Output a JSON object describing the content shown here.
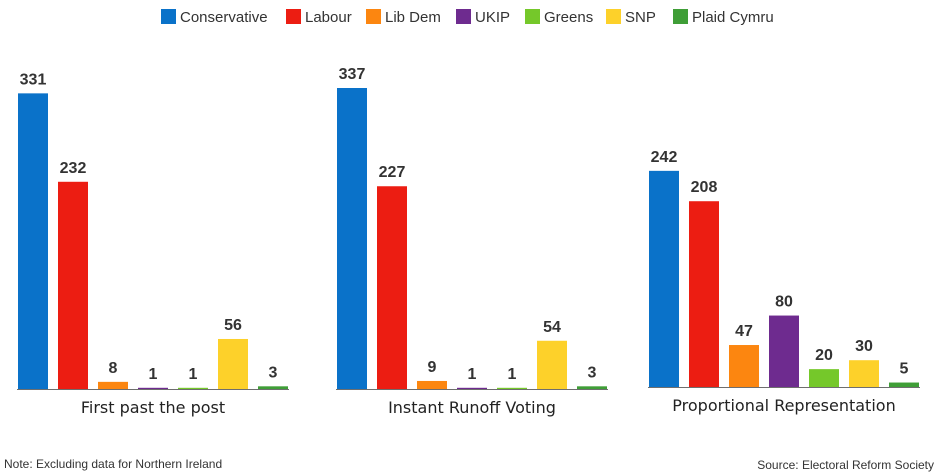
{
  "chart_data": {
    "type": "bar",
    "series_names": [
      "Conservative",
      "Labour",
      "Lib Dem",
      "UKIP",
      "Greens",
      "SNP",
      "Plaid Cymru"
    ],
    "colors": [
      "#0a72c9",
      "#ec1d12",
      "#fc8610",
      "#6e2b8f",
      "#75c82a",
      "#fdd12a",
      "#3f9e37"
    ],
    "groups": [
      {
        "label": "First past the post",
        "values": [
          331,
          232,
          8,
          1,
          1,
          56,
          3
        ]
      },
      {
        "label": "Instant Runoff Voting",
        "values": [
          337,
          227,
          9,
          1,
          1,
          54,
          3
        ]
      },
      {
        "label": "Proportional Representation",
        "values": [
          242,
          208,
          47,
          80,
          20,
          30,
          5
        ]
      }
    ],
    "ylim": [
      0,
      337
    ],
    "grid": false,
    "legend": "top-center"
  },
  "footer": {
    "note": "Note: Excluding data for Northern Ireland",
    "source": "Source: Electoral Reform Society"
  }
}
